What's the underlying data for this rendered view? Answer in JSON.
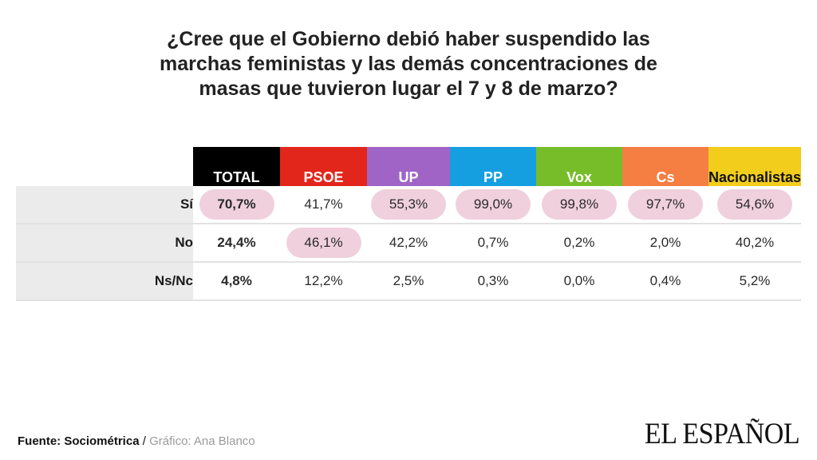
{
  "title_lines": [
    "¿Cree que el Gobierno debió haber suspendido las",
    "marchas feministas y las demás concentraciones de",
    "masas que tuvieron lugar el 7 y 8 de marzo?"
  ],
  "chart_data": {
    "type": "table",
    "title": "¿Cree que el Gobierno debió haber suspendido las marchas feministas y las demás concentraciones de masas que tuvieron lugar el 7 y 8 de marzo?",
    "columns": [
      {
        "label": "TOTAL",
        "color": "#000000",
        "text_color": "#ffffff"
      },
      {
        "label": "PSOE",
        "color": "#e2261c",
        "text_color": "#ffffff"
      },
      {
        "label": "UP",
        "color": "#a064c6",
        "text_color": "#ffffff"
      },
      {
        "label": "PP",
        "color": "#159fe0",
        "text_color": "#ffffff"
      },
      {
        "label": "Vox",
        "color": "#77bd2a",
        "text_color": "#ffffff"
      },
      {
        "label": "Cs",
        "color": "#f57e43",
        "text_color": "#ffffff"
      },
      {
        "label": "Nacionalistas",
        "color": "#f2cd1c",
        "text_color": "#111111"
      }
    ],
    "rows": [
      {
        "label": "Sí",
        "values": [
          "70,7%",
          "41,7%",
          "55,3%",
          "99,0%",
          "99,8%",
          "97,7%",
          "54,6%"
        ],
        "highlight": [
          true,
          false,
          true,
          true,
          true,
          true,
          true
        ]
      },
      {
        "label": "No",
        "values": [
          "24,4%",
          "46,1%",
          "42,2%",
          "0,7%",
          "0,2%",
          "2,0%",
          "40,2%"
        ],
        "highlight": [
          false,
          true,
          false,
          false,
          false,
          false,
          false
        ]
      },
      {
        "label": "Ns/Nc",
        "values": [
          "4,8%",
          "12,2%",
          "2,5%",
          "0,3%",
          "0,0%",
          "0,4%",
          "5,2%"
        ],
        "highlight": [
          false,
          false,
          false,
          false,
          false,
          false,
          false
        ]
      }
    ],
    "highlight_color": "#f0d0dd"
  },
  "footer": {
    "source": "Fuente: Sociométrica",
    "separator": " / ",
    "credit": "Gráfico: Ana Blanco"
  },
  "logo": "EL ESPAÑOL"
}
